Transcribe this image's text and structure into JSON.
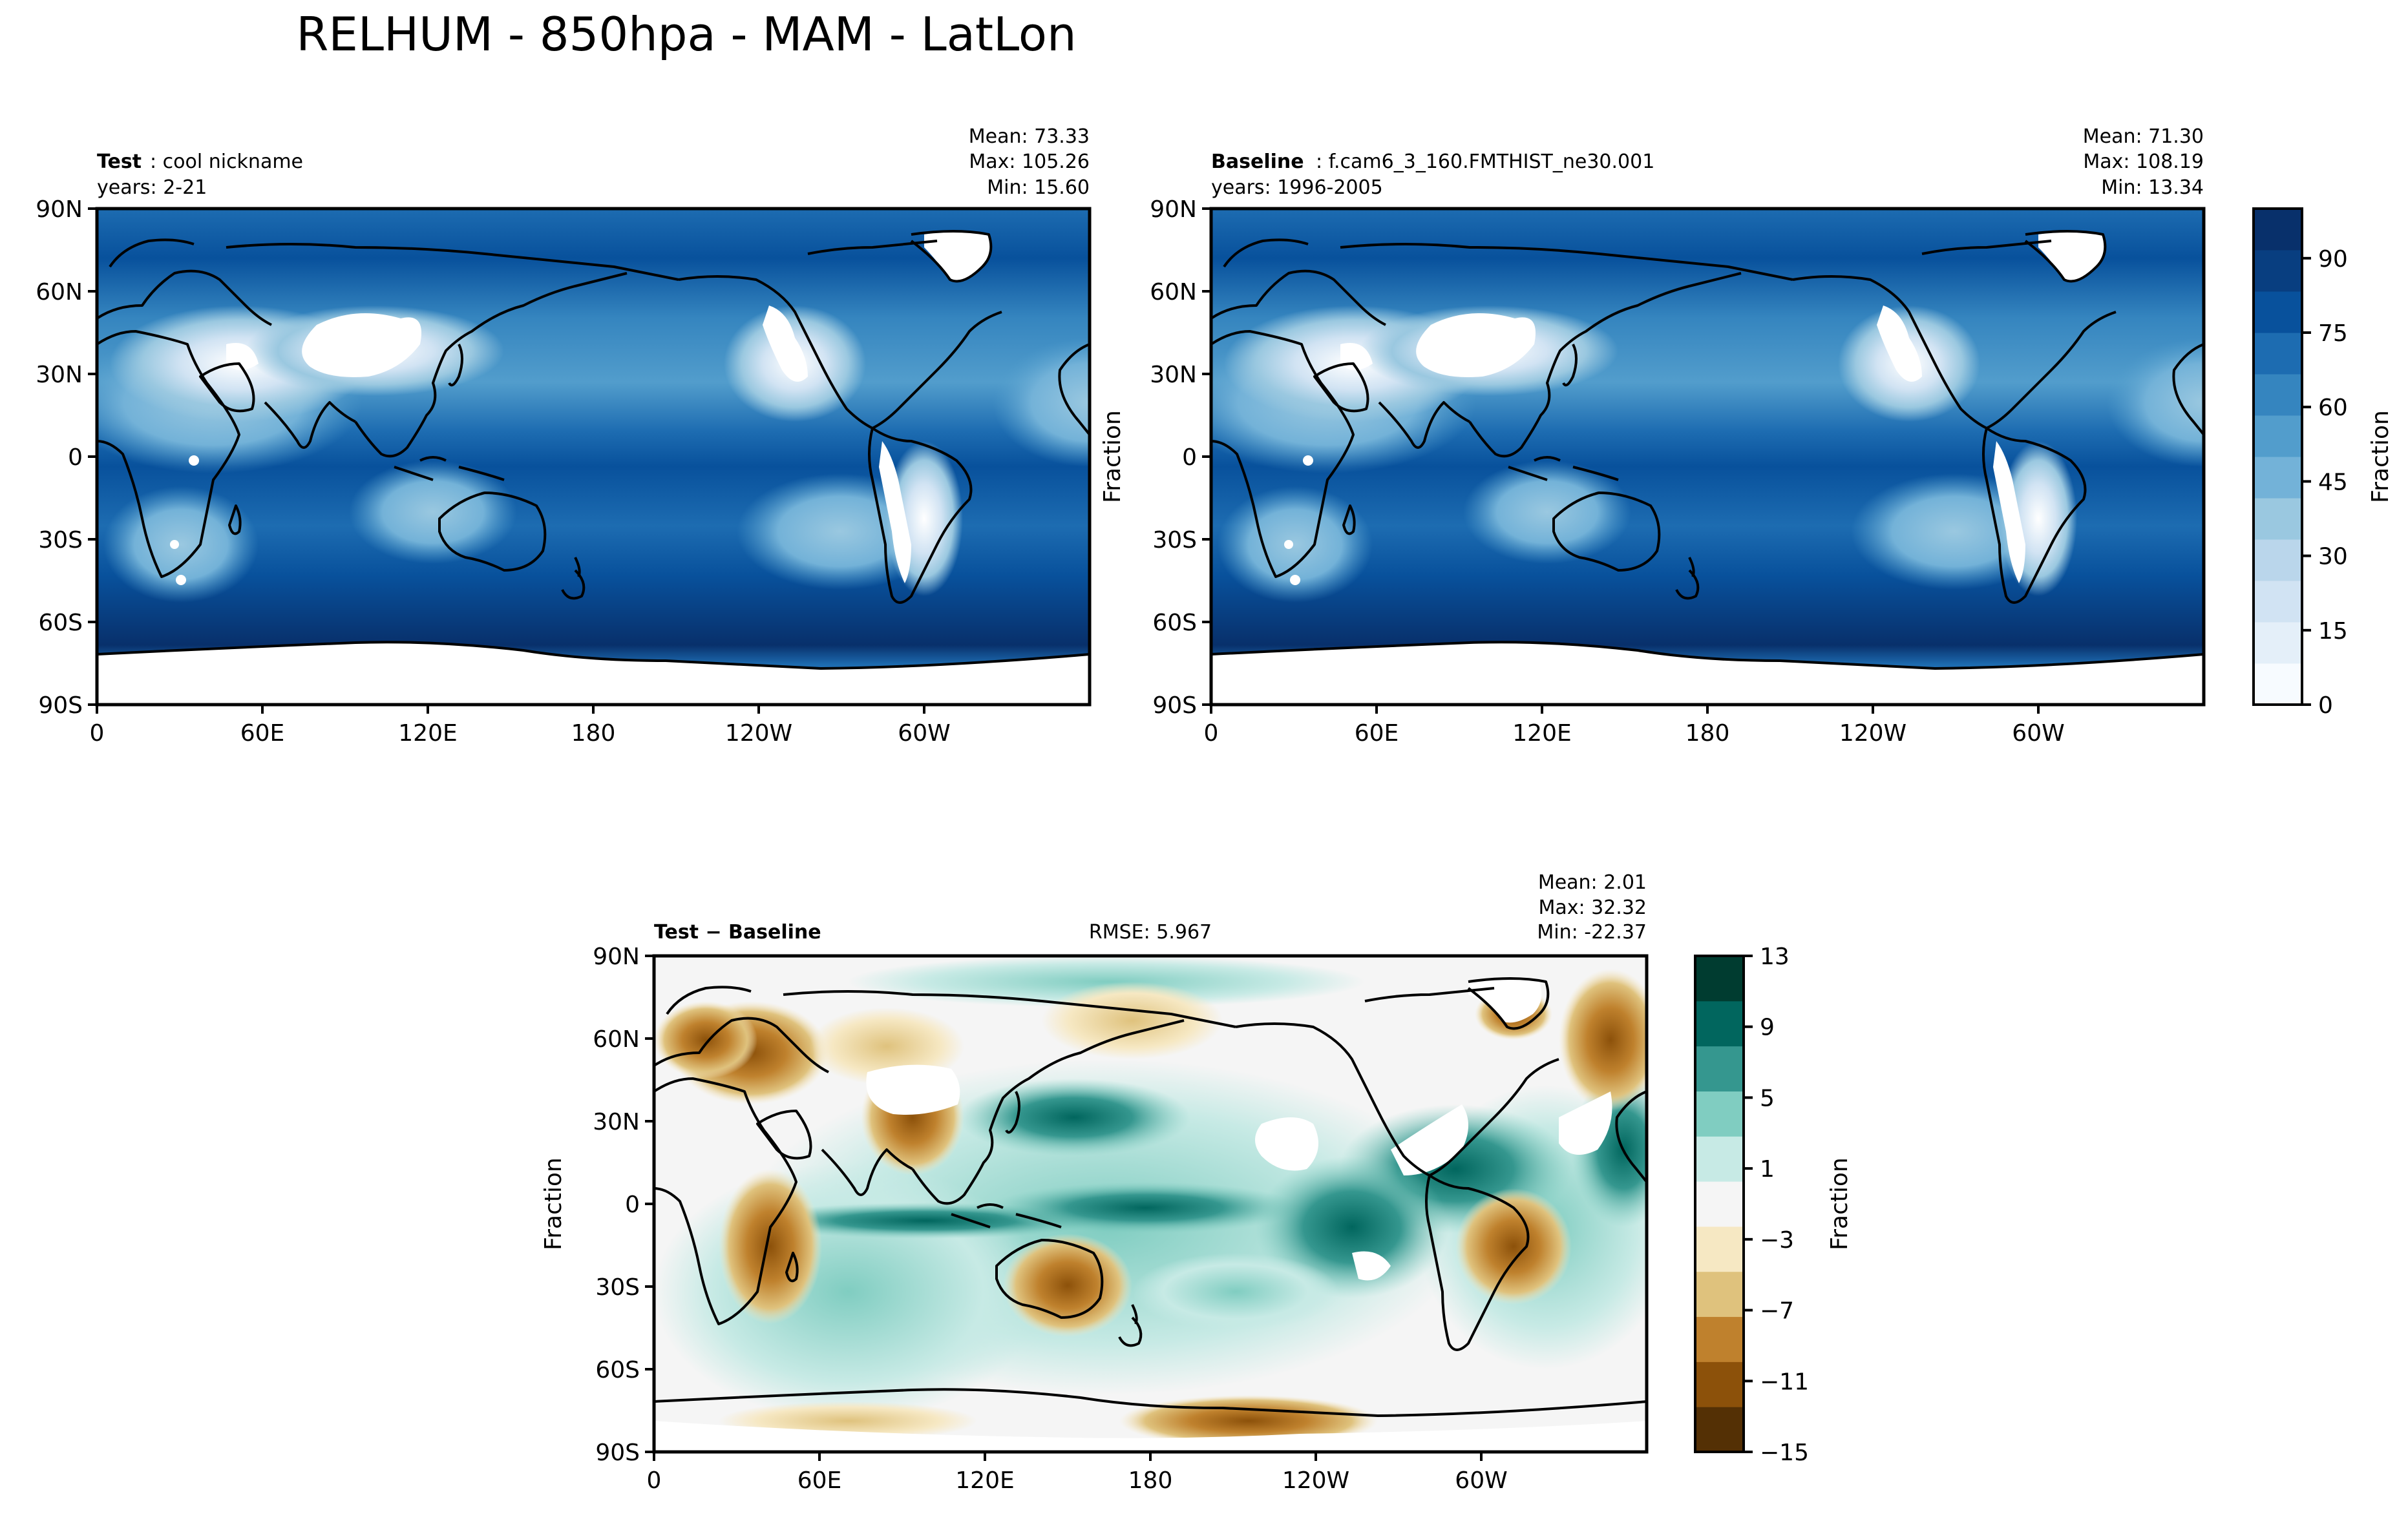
{
  "figure_title": "RELHUM - 850hpa - MAM - LatLon",
  "chart_data": [
    {
      "type": "heatmap",
      "panel": "test",
      "header": {
        "bold": "Test",
        "rest": ": cool nickname"
      },
      "years": "years: 2-21",
      "stats": {
        "mean": "Mean: 73.33",
        "max": "Max: 105.26",
        "min": "Min: 15.60"
      },
      "x_ticks": [
        "0",
        "60E",
        "120E",
        "180",
        "120W",
        "60W"
      ],
      "y_ticks": [
        "90N",
        "60N",
        "30N",
        "0",
        "30S",
        "60S",
        "90S"
      ],
      "xlim": [
        0,
        360
      ],
      "ylim": [
        -90,
        90
      ],
      "ylabel": ""
    },
    {
      "type": "heatmap",
      "panel": "baseline",
      "header": {
        "bold": "Baseline",
        "rest": ": f.cam6_3_160.FMTHIST_ne30.001"
      },
      "years": "years: 1996-2005",
      "stats": {
        "mean": "Mean: 71.30",
        "max": "Max: 108.19",
        "min": "Min: 13.34"
      },
      "x_ticks": [
        "0",
        "60E",
        "120E",
        "180",
        "120W",
        "60W"
      ],
      "y_ticks": [
        "90N",
        "60N",
        "30N",
        "0",
        "30S",
        "60S",
        "90S"
      ],
      "xlim": [
        0,
        360
      ],
      "ylim": [
        -90,
        90
      ],
      "ylabel": "Fraction",
      "colorbar": {
        "label": "Fraction",
        "ticks": [
          "0",
          "15",
          "30",
          "45",
          "60",
          "75",
          "90"
        ],
        "range": [
          0,
          100
        ],
        "palette": "Blues"
      }
    },
    {
      "type": "heatmap",
      "panel": "difference",
      "header": {
        "bold": "Test − Baseline",
        "rest": ""
      },
      "rmse": "RMSE: 5.967",
      "stats": {
        "mean": "Mean:  2.01",
        "max": "Max: 32.32",
        "min": "Min: -22.37"
      },
      "x_ticks": [
        "0",
        "60E",
        "120E",
        "180",
        "120W",
        "60W"
      ],
      "y_ticks": [
        "90N",
        "60N",
        "30N",
        "0",
        "30S",
        "60S",
        "90S"
      ],
      "xlim": [
        0,
        360
      ],
      "ylim": [
        -90,
        90
      ],
      "ylabel": "Fraction",
      "colorbar": {
        "label": "Fraction",
        "ticks": [
          "13",
          "9",
          "5",
          "1",
          "−3",
          "−7",
          "−11",
          "−15"
        ],
        "range": [
          -15,
          13
        ],
        "palette": "BrBG"
      }
    }
  ],
  "colors": {
    "blues": [
      "#f7fbff",
      "#e4eff9",
      "#d1e3f3",
      "#bad6eb",
      "#9ac8e0",
      "#73b2d8",
      "#529dcc",
      "#3585bf",
      "#1d6cb1",
      "#08519c",
      "#083e80",
      "#08306b"
    ],
    "brbg": [
      "#543005",
      "#8c510a",
      "#bf812d",
      "#dfc27d",
      "#f6e8c3",
      "#f5f5f5",
      "#c7eae5",
      "#80cdc1",
      "#35978f",
      "#01665e",
      "#003c30"
    ]
  }
}
